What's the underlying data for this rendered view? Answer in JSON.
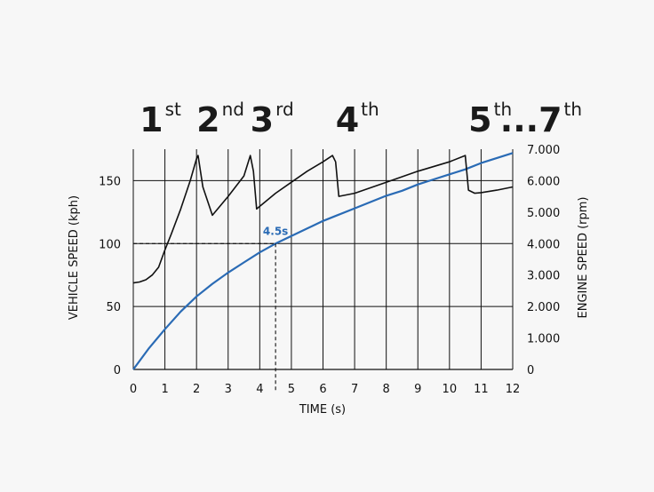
{
  "chart_data": {
    "type": "line",
    "title": "",
    "xlabel": "TIME (s)",
    "ylabel_left": "VEHICLE SPEED (kph)",
    "ylabel_right": "ENGINE SPEED (rpm)",
    "xlim": [
      0,
      12
    ],
    "ylim_left": [
      0,
      175
    ],
    "ylim_right": [
      0,
      7000
    ],
    "grid": true,
    "x_ticks": [
      "0",
      "1",
      "2",
      "3",
      "4",
      "5",
      "6",
      "7",
      "8",
      "9",
      "10",
      "11",
      "12"
    ],
    "y_left_ticks": [
      "0",
      "50",
      "100",
      "150"
    ],
    "y_right_ticks": [
      "0",
      "1.000",
      "2.000",
      "3.000",
      "4.000",
      "5.000",
      "6.000",
      "7.000"
    ],
    "gear_labels": [
      {
        "num": "1",
        "sup": "st",
        "x": 0.2
      },
      {
        "num": "2",
        "sup": "nd",
        "x": 2.0
      },
      {
        "num": "3",
        "sup": "rd",
        "x": 3.7
      },
      {
        "num": "4",
        "sup": "th",
        "x": 6.4
      },
      {
        "num": "5",
        "sup": "th",
        "x": 10.6
      },
      {
        "num": "...7",
        "sup": "th",
        "x": 11.6
      }
    ],
    "series": [
      {
        "axis": "left",
        "color": "#2a6bb5",
        "x": [
          0,
          0.5,
          1,
          1.5,
          2,
          2.5,
          3,
          3.5,
          4,
          4.5,
          5,
          5.5,
          6,
          6.5,
          7,
          7.5,
          8,
          8.5,
          9,
          9.5,
          10,
          10.5,
          11,
          11.5,
          12
        ],
        "y": [
          0,
          17,
          32,
          46,
          58,
          68,
          77,
          85,
          93,
          100,
          106,
          112,
          118,
          123,
          128,
          133,
          138,
          142,
          147,
          151,
          155,
          159,
          164,
          168,
          172
        ]
      },
      {
        "axis": "right",
        "color": "#111111",
        "x": [
          0,
          0.2,
          0.4,
          0.6,
          0.8,
          1.0,
          1.2,
          1.5,
          1.8,
          2.0,
          2.05,
          2.2,
          2.5,
          3.0,
          3.5,
          3.7,
          3.8,
          3.9,
          4.5,
          5.0,
          5.5,
          6.0,
          6.3,
          6.4,
          6.5,
          7,
          8,
          9,
          10,
          10.5,
          10.6,
          10.8,
          11,
          11.5,
          12
        ],
        "y": [
          2750,
          2780,
          2850,
          3000,
          3250,
          3800,
          4300,
          5100,
          6000,
          6700,
          6800,
          5800,
          4900,
          5500,
          6150,
          6800,
          6300,
          5100,
          5600,
          5950,
          6300,
          6600,
          6800,
          6600,
          5500,
          5600,
          5950,
          6300,
          6600,
          6800,
          5700,
          5600,
          5620,
          5700,
          5800
        ]
      }
    ],
    "annotation": {
      "label": "4.5s",
      "x": 4.5,
      "y": 100,
      "color": "#2a6bb5"
    }
  }
}
